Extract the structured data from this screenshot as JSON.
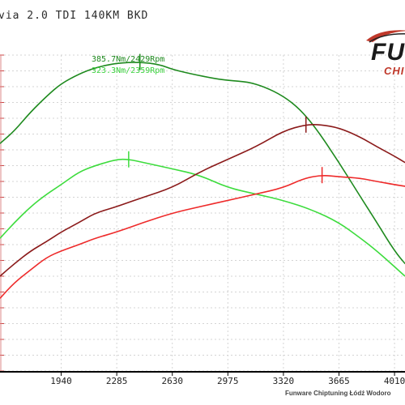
{
  "header": {
    "title": "via 2.0 TDI 140KM BKD"
  },
  "logo": {
    "main": "FUN",
    "sub": "CHI"
  },
  "footer": {
    "credit": "Funware Chiptuning Łódź Wodoro"
  },
  "annotations": {
    "peak_1": "385.7Nm/2429Rpm",
    "peak_2": "323.3Nm/2359Rpm"
  },
  "colors": {
    "tuned_torque": "#1e8a1e",
    "stock_torque": "#3ddc3d",
    "tuned_power": "#8b1a1a",
    "stock_power": "#ee2a2a",
    "grid": "#d4d4d4"
  },
  "chart_data": {
    "type": "line",
    "title": "via 2.0 TDI 140KM BKD",
    "xlabel": "",
    "ylabel": "",
    "x_ticks": [
      1940,
      2285,
      2630,
      2975,
      3320,
      3665,
      4010
    ],
    "xlim": [
      1560,
      4075
    ],
    "ylim": [
      0,
      1
    ],
    "grid": true,
    "series": [
      {
        "key": "tuned_torque",
        "peak_x": 2429,
        "x": [
          1560,
          1650,
          1750,
          1850,
          1940,
          2050,
          2150,
          2285,
          2429,
          2550,
          2630,
          2750,
          2900,
          2975,
          3100,
          3200,
          3320,
          3420,
          3520,
          3665,
          3800,
          3900,
          4010,
          4075
        ],
        "y": [
          0.72,
          0.76,
          0.82,
          0.87,
          0.91,
          0.94,
          0.96,
          0.975,
          0.978,
          0.97,
          0.955,
          0.94,
          0.925,
          0.92,
          0.915,
          0.9,
          0.87,
          0.83,
          0.77,
          0.66,
          0.55,
          0.47,
          0.38,
          0.34
        ]
      },
      {
        "key": "stock_torque",
        "peak_x": 2359,
        "x": [
          1560,
          1650,
          1750,
          1850,
          1940,
          2050,
          2150,
          2285,
          2359,
          2450,
          2630,
          2800,
          2975,
          3150,
          3320,
          3500,
          3665,
          3800,
          3900,
          4010,
          4075
        ],
        "y": [
          0.42,
          0.47,
          0.52,
          0.56,
          0.59,
          0.63,
          0.65,
          0.67,
          0.67,
          0.66,
          0.64,
          0.62,
          0.58,
          0.56,
          0.54,
          0.51,
          0.47,
          0.42,
          0.38,
          0.33,
          0.3
        ]
      },
      {
        "key": "tuned_power",
        "peak_x": 3460,
        "x": [
          1560,
          1650,
          1750,
          1850,
          1940,
          2050,
          2150,
          2285,
          2450,
          2630,
          2800,
          2975,
          3150,
          3320,
          3460,
          3550,
          3665,
          3800,
          3900,
          4010,
          4075
        ],
        "y": [
          0.3,
          0.34,
          0.38,
          0.41,
          0.44,
          0.47,
          0.5,
          0.52,
          0.55,
          0.58,
          0.63,
          0.67,
          0.71,
          0.76,
          0.78,
          0.78,
          0.77,
          0.74,
          0.71,
          0.68,
          0.66
        ]
      },
      {
        "key": "stock_power",
        "peak_x": 3560,
        "x": [
          1560,
          1650,
          1750,
          1850,
          1940,
          2050,
          2150,
          2285,
          2450,
          2630,
          2800,
          2975,
          3150,
          3320,
          3450,
          3560,
          3665,
          3800,
          3900,
          4010,
          4075
        ],
        "y": [
          0.23,
          0.28,
          0.32,
          0.36,
          0.38,
          0.4,
          0.42,
          0.44,
          0.47,
          0.5,
          0.52,
          0.54,
          0.56,
          0.58,
          0.61,
          0.62,
          0.615,
          0.61,
          0.6,
          0.59,
          0.585
        ]
      }
    ]
  }
}
